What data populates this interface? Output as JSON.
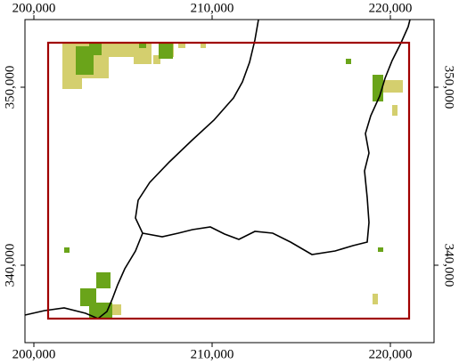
{
  "chart_data": {
    "type": "map",
    "xlim": [
      199500,
      222450
    ],
    "ylim": [
      335650,
      353800
    ],
    "xticks": [
      {
        "value": 200000,
        "label": "200,000"
      },
      {
        "value": 210000,
        "label": "210,000"
      },
      {
        "value": 220000,
        "label": "220,000"
      }
    ],
    "yticks": [
      {
        "value": 340000,
        "label": "340,000"
      },
      {
        "value": 350000,
        "label": "350,000"
      }
    ]
  }
}
